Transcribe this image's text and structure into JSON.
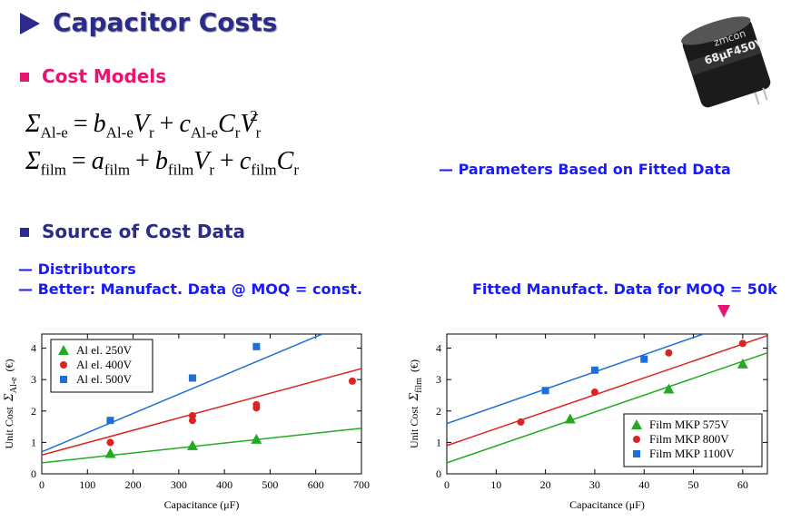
{
  "header": {
    "title": "Capacitor Costs"
  },
  "cost_models": {
    "heading": "Cost Models",
    "equations": [
      [
        {
          "t": "Σ",
          "sub": "Al-e"
        },
        {
          "t": "="
        },
        {
          "t": "b",
          "sub": "Al-e"
        },
        {
          "t": "V",
          "sub": "r"
        },
        {
          "t": "+"
        },
        {
          "t": "c",
          "sub": "Al-e"
        },
        {
          "t": "C",
          "sub": "r"
        },
        {
          "t": "V",
          "sub": "r",
          "sup": "2"
        }
      ],
      [
        {
          "t": "Σ",
          "sub": "film"
        },
        {
          "t": "="
        },
        {
          "t": "a",
          "sub": "film"
        },
        {
          "t": "+"
        },
        {
          "t": "b",
          "sub": "film"
        },
        {
          "t": "V",
          "sub": "r"
        },
        {
          "t": "+"
        },
        {
          "t": "c",
          "sub": "film"
        },
        {
          "t": "C",
          "sub": "r"
        }
      ]
    ],
    "note": "— Parameters Based on Fitted Data"
  },
  "source": {
    "heading": "Source of Cost Data",
    "items": [
      "— Distributors",
      "— Better:  Manufact. Data @ MOQ = const."
    ],
    "callout": "Fitted Manufact. Data for MOQ = 50k"
  },
  "image": {
    "brand": "zmcon",
    "rating": "68μF450V"
  },
  "chart_data": [
    {
      "type": "scatter",
      "xlabel": "Capacitance (μF)",
      "ylabel": "Unit Cost",
      "ylabel_symbol": "Σ",
      "ylabel_sub": "Al-e",
      "ylabel_unit": "(€)",
      "xlim": [
        0,
        700
      ],
      "ylim": [
        0,
        4.45
      ],
      "xticks": [
        0,
        100,
        200,
        300,
        400,
        500,
        600,
        700
      ],
      "yticks": [
        0,
        1,
        2,
        3,
        4
      ],
      "legend": "upper left",
      "series": [
        {
          "name": "Al el. 250V",
          "color": "#22aa22",
          "marker": "triangle",
          "x": [
            150,
            330,
            470
          ],
          "values": [
            0.65,
            0.9,
            1.1
          ],
          "fit_x": [
            0,
            700
          ],
          "fit_y": [
            0.35,
            1.45
          ]
        },
        {
          "name": "Al el. 400V",
          "color": "#dd2222",
          "marker": "circle",
          "x": [
            150,
            330,
            330,
            470,
            470,
            680
          ],
          "values": [
            1.0,
            1.85,
            1.7,
            2.2,
            2.1,
            2.95
          ],
          "fit_x": [
            0,
            700
          ],
          "fit_y": [
            0.6,
            3.35
          ]
        },
        {
          "name": "Al el. 500V",
          "color": "#1f6fd6",
          "marker": "square",
          "x": [
            150,
            330,
            470
          ],
          "values": [
            1.7,
            3.05,
            4.05
          ],
          "fit_x": [
            0,
            614
          ],
          "fit_y": [
            0.7,
            4.45
          ]
        }
      ]
    },
    {
      "type": "scatter",
      "xlabel": "Capacitance (μF)",
      "ylabel": "Unit Cost",
      "ylabel_symbol": "Σ",
      "ylabel_sub": "film",
      "ylabel_unit": "(€)",
      "xlim": [
        0,
        65
      ],
      "ylim": [
        0,
        4.45
      ],
      "xticks": [
        0,
        10,
        20,
        30,
        40,
        50,
        60
      ],
      "yticks": [
        0,
        1,
        2,
        3,
        4
      ],
      "legend": "lower right",
      "series": [
        {
          "name": "Film MKP 575V",
          "color": "#22aa22",
          "marker": "triangle",
          "x": [
            25,
            45,
            60
          ],
          "values": [
            1.75,
            2.7,
            3.5
          ],
          "fit_x": [
            0,
            65
          ],
          "fit_y": [
            0.35,
            3.85
          ]
        },
        {
          "name": "Film MKP 800V",
          "color": "#dd2222",
          "marker": "circle",
          "x": [
            15,
            30,
            45,
            60
          ],
          "values": [
            1.65,
            2.6,
            3.85,
            4.15
          ],
          "fit_x": [
            0,
            65
          ],
          "fit_y": [
            0.9,
            4.4
          ]
        },
        {
          "name": "Film MKP 1100V",
          "color": "#1f6fd6",
          "marker": "square",
          "x": [
            20,
            30,
            40
          ],
          "values": [
            2.65,
            3.3,
            3.65
          ],
          "fit_x": [
            0,
            52
          ],
          "fit_y": [
            1.6,
            4.45
          ]
        }
      ]
    }
  ]
}
